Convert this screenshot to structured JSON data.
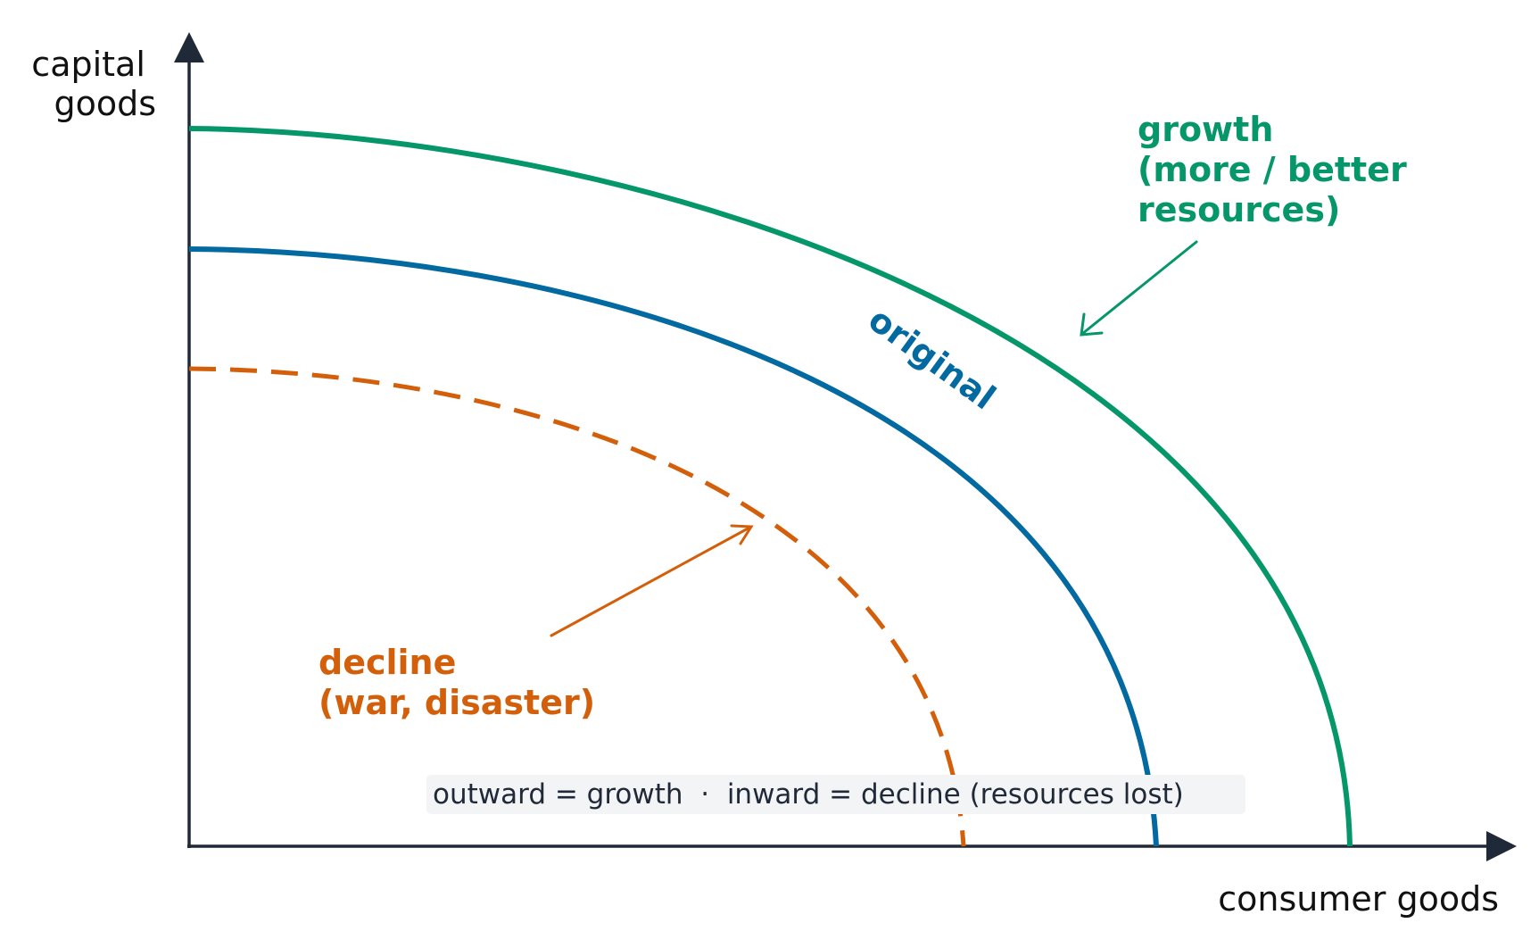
{
  "diagram": {
    "y_axis_label": [
      "capital",
      "goods"
    ],
    "x_axis_label": "consumer goods",
    "curves": {
      "growth": {
        "label": [
          "growth",
          "(more / better",
          "resources)"
        ],
        "color": "#059669",
        "style": "solid"
      },
      "original": {
        "label": "original",
        "color": "#0369a1",
        "style": "solid"
      },
      "decline": {
        "label": [
          "decline",
          "(war, disaster)"
        ],
        "color": "#d35f0b",
        "style": "dashed"
      }
    },
    "note": "outward = growth  ·  inward = decline (resources lost)",
    "axis_color": "#1f2937",
    "note_background": "#f3f4f6"
  }
}
